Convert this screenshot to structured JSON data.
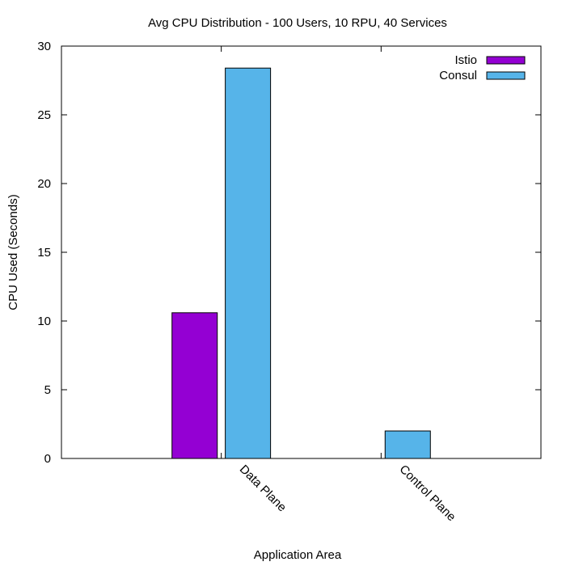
{
  "chart_data": {
    "type": "bar",
    "title": "Avg CPU Distribution - 100 Users, 10 RPU, 40 Services",
    "xlabel": "Application Area",
    "ylabel": "CPU Used (Seconds)",
    "categories": [
      "Data Plane",
      "Control Plane"
    ],
    "series": [
      {
        "name": "Istio",
        "color": "#9400d3",
        "values": [
          10.6,
          0
        ]
      },
      {
        "name": "Consul",
        "color": "#56b4e9",
        "values": [
          28.4,
          2.0
        ]
      }
    ],
    "ylim": [
      0,
      30
    ],
    "yticks": [
      0,
      5,
      10,
      15,
      20,
      25,
      30
    ],
    "grid": false,
    "legend_position": "top-right"
  }
}
